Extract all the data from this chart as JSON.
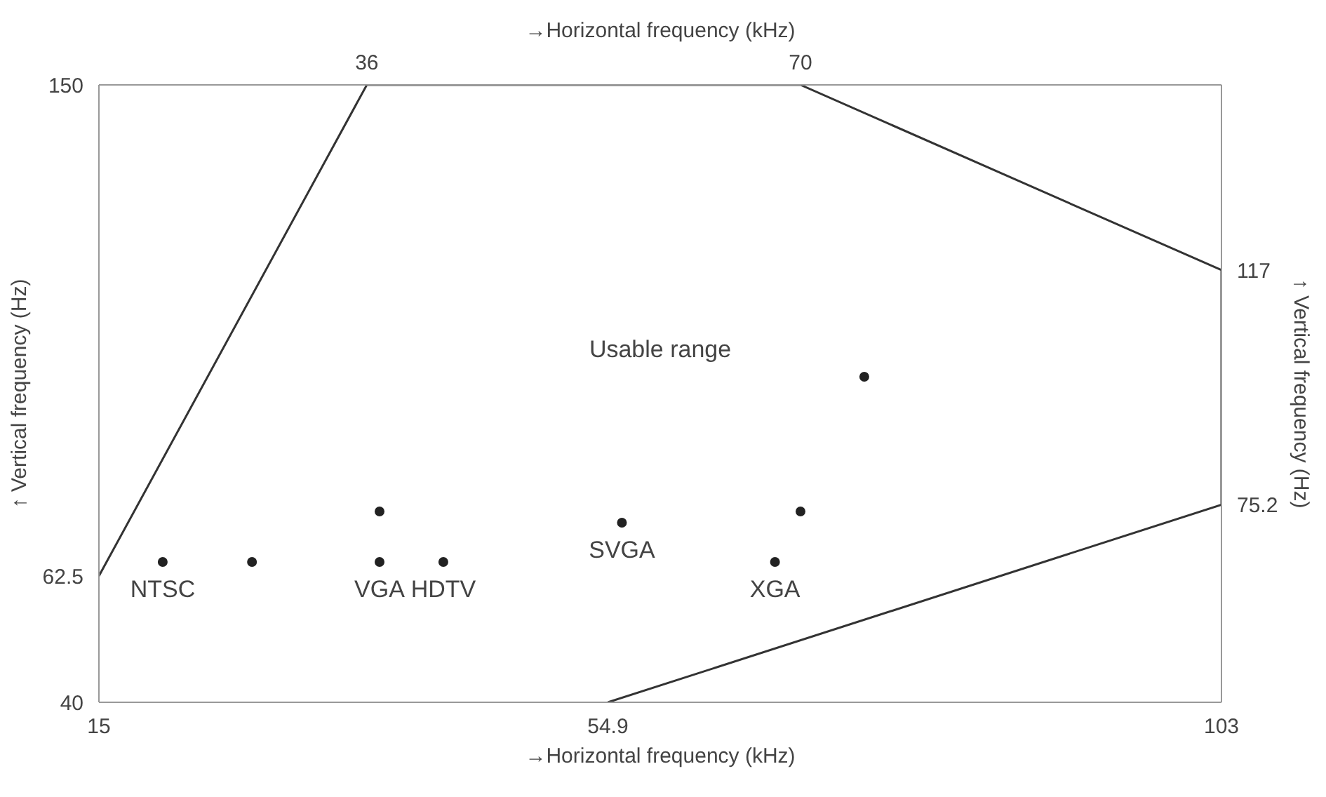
{
  "chart_data": {
    "type": "scatter",
    "xlabel": "→Horizontal frequency (kHz)",
    "x2label": "→Horizontal frequency (kHz)",
    "ylabel": "↑ Vertical frequency (Hz)",
    "y2label": "↑ Vertical frequency (Hz)",
    "xlim": [
      15,
      103
    ],
    "xticks": [
      15,
      54.9,
      103
    ],
    "x2lim": [
      15,
      103
    ],
    "x2ticks": [
      36,
      70
    ],
    "ylim": [
      40,
      150
    ],
    "yticks": [
      40,
      62.5,
      150
    ],
    "y2lim": [
      40,
      150
    ],
    "y2ticks": [
      75.2,
      117
    ],
    "grid": false,
    "marker": "circle",
    "series": [
      {
        "type": "line",
        "marker": "none",
        "color": "#333333",
        "x": [
          15,
          36,
          70,
          103,
          103,
          54.9
        ],
        "values": [
          62.5,
          150,
          150,
          117,
          75.2,
          40
        ]
      },
      {
        "color": "#222222",
        "x": [
          20,
          27,
          37,
          37,
          42,
          56,
          68,
          70,
          75
        ],
        "values": [
          65,
          65,
          65,
          74,
          65,
          72,
          65,
          74,
          98
        ]
      }
    ],
    "annotations": [
      {
        "text": "NTSC",
        "x": 20,
        "y": 65
      },
      {
        "text": "VGA",
        "x": 37,
        "y": 65
      },
      {
        "text": "HDTV",
        "x": 42,
        "y": 65
      },
      {
        "text": "SVGA",
        "x": 56,
        "y": 72
      },
      {
        "text": "XGA",
        "x": 68,
        "y": 65
      },
      "Usable range"
    ]
  }
}
